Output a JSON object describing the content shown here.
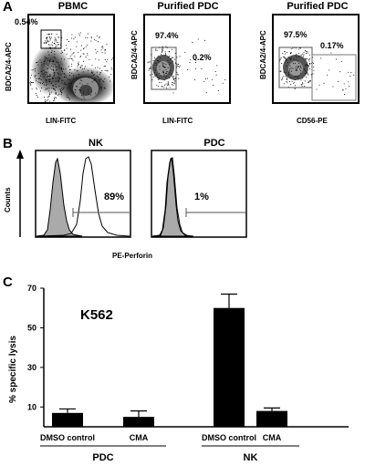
{
  "panelA": {
    "letter": "A",
    "plots": [
      {
        "title": "PBMC",
        "ylabel": "BDCA2/4-APC",
        "xlabel": "LIN-FITC",
        "gates": [
          "0.54%"
        ]
      },
      {
        "title": "Purified PDC",
        "ylabel": "BDCA2/4-APC",
        "xlabel": "LIN-FITC",
        "gates": [
          "97.4%",
          "0.2%"
        ]
      },
      {
        "title": "Purified PDC",
        "ylabel": "BDCA2/4-APC",
        "xlabel": "CD56-PE",
        "gates": [
          "97.5%",
          "0.17%"
        ]
      }
    ]
  },
  "panelB": {
    "letter": "B",
    "ylabel": "Counts",
    "xlabel": "PE-Perforin",
    "histograms": [
      {
        "title": "NK",
        "gate_label": "89%"
      },
      {
        "title": "PDC",
        "gate_label": "1%"
      }
    ]
  },
  "panelC": {
    "letter": "C",
    "annotation": "K562",
    "chart_data": {
      "type": "bar",
      "ylabel": "% specific lysis",
      "ylim": [
        0,
        70
      ],
      "yticks": [
        "70",
        "50",
        "30",
        "10"
      ],
      "ytick_values": [
        70,
        50,
        30,
        10
      ],
      "categories": [
        "DMSO control",
        "CMA",
        "DMSO control",
        "CMA"
      ],
      "values": [
        7,
        5,
        60,
        8
      ],
      "errors": [
        2,
        3,
        7,
        1.5
      ],
      "groups": [
        {
          "label": "PDC",
          "members": [
            0,
            1
          ]
        },
        {
          "label": "NK",
          "members": [
            2,
            3
          ]
        }
      ],
      "bar_color": "#000000"
    }
  }
}
